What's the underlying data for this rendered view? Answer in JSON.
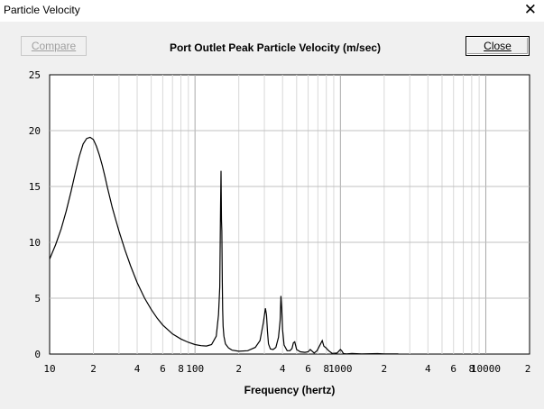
{
  "window": {
    "title": "Particle Velocity",
    "close_glyph": "✕"
  },
  "toolbar": {
    "compare_label": "Compare",
    "close_label": "Close"
  },
  "chart_data": {
    "type": "line",
    "title": "Port Outlet Peak Particle Velocity (m/sec)",
    "xlabel": "Frequency (hertz)",
    "ylabel": "",
    "xscale": "log",
    "xlim": [
      10,
      20000
    ],
    "ylim": [
      0,
      25
    ],
    "grid": true,
    "y_ticks": [
      "0",
      "5",
      "10",
      "15",
      "20",
      "25"
    ],
    "x_ticks": [
      {
        "value": 10,
        "label": "10"
      },
      {
        "value": 20,
        "label": "2"
      },
      {
        "value": 40,
        "label": "4"
      },
      {
        "value": 60,
        "label": "6"
      },
      {
        "value": 80,
        "label": "8"
      },
      {
        "value": 100,
        "label": "100"
      },
      {
        "value": 200,
        "label": "2"
      },
      {
        "value": 400,
        "label": "4"
      },
      {
        "value": 600,
        "label": "6"
      },
      {
        "value": 800,
        "label": "8"
      },
      {
        "value": 1000,
        "label": "1000"
      },
      {
        "value": 2000,
        "label": "2"
      },
      {
        "value": 4000,
        "label": "4"
      },
      {
        "value": 6000,
        "label": "6"
      },
      {
        "value": 8000,
        "label": "8"
      },
      {
        "value": 10000,
        "label": "10000"
      },
      {
        "value": 20000,
        "label": "2"
      }
    ],
    "series": [
      {
        "color": "#000000",
        "x": [
          10,
          11,
          12,
          13,
          14,
          15,
          16,
          17,
          18,
          19,
          20,
          21,
          22,
          23,
          24,
          25,
          27,
          30,
          33,
          36,
          40,
          45,
          50,
          55,
          60,
          70,
          80,
          90,
          100,
          110,
          120,
          130,
          140,
          145,
          148,
          150,
          151,
          152,
          153,
          154,
          155,
          156,
          158,
          162,
          170,
          180,
          200,
          230,
          260,
          280,
          295,
          305,
          310,
          315,
          320,
          330,
          345,
          360,
          375,
          385,
          390,
          395,
          400,
          410,
          430,
          450,
          465,
          475,
          485,
          500,
          530,
          570,
          600,
          620,
          640,
          660,
          690,
          730,
          750,
          770,
          790,
          830,
          880,
          950,
          1000,
          1020,
          1050,
          1100,
          1200,
          1400,
          1800,
          2000,
          2500
        ],
        "y": [
          8.5,
          9.8,
          11.2,
          12.8,
          14.5,
          16.2,
          17.7,
          18.8,
          19.3,
          19.4,
          19.2,
          18.6,
          17.8,
          16.9,
          15.9,
          14.9,
          13.1,
          11.0,
          9.3,
          7.9,
          6.4,
          5.0,
          4.0,
          3.2,
          2.6,
          1.8,
          1.35,
          1.05,
          0.85,
          0.75,
          0.72,
          0.85,
          1.6,
          3.5,
          6.0,
          13.3,
          16.4,
          12.0,
          11.0,
          6.5,
          4.0,
          2.5,
          1.6,
          0.9,
          0.55,
          0.35,
          0.25,
          0.3,
          0.6,
          1.2,
          2.8,
          4.1,
          3.5,
          2.0,
          0.9,
          0.45,
          0.4,
          0.6,
          1.5,
          3.0,
          5.2,
          4.0,
          2.2,
          0.8,
          0.3,
          0.3,
          0.5,
          1.0,
          1.1,
          0.4,
          0.2,
          0.15,
          0.2,
          0.4,
          0.25,
          0.1,
          0.3,
          0.9,
          1.2,
          0.7,
          0.6,
          0.3,
          0.05,
          0.1,
          0.4,
          0.3,
          0.05,
          0.02,
          0.05,
          0.02,
          0.04,
          0.02,
          0.01
        ]
      }
    ]
  }
}
